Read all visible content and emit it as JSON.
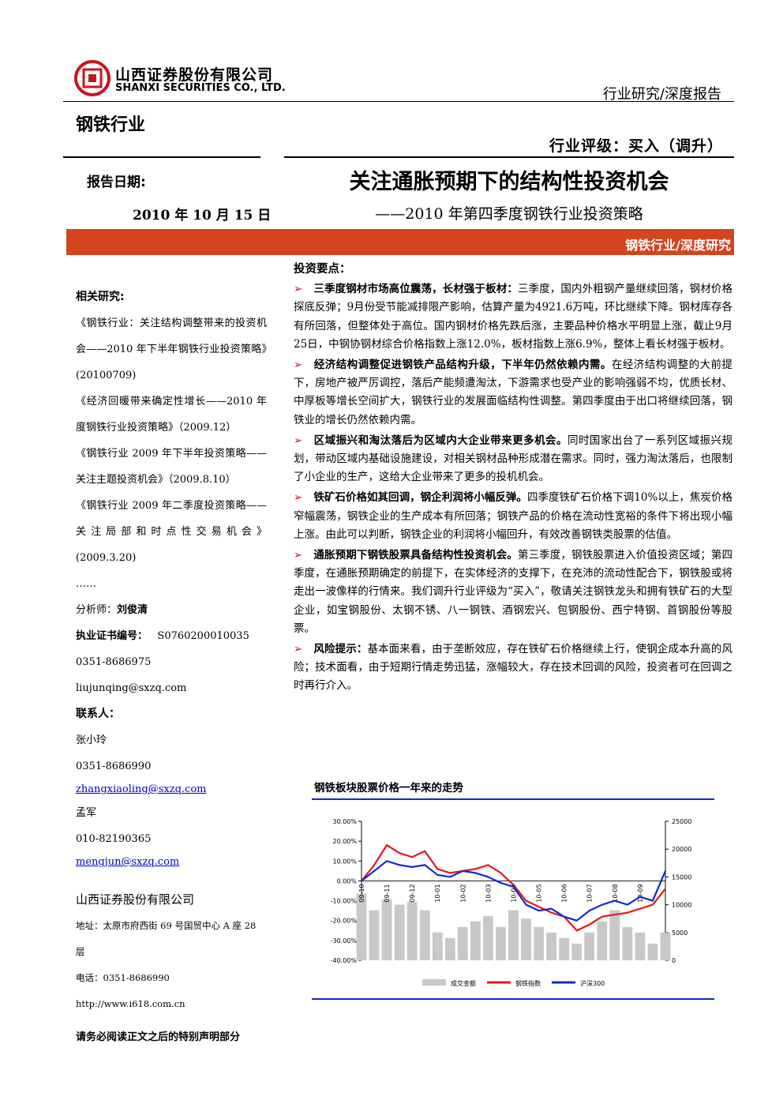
{
  "header": {
    "company_cn": "山西证券股份有限公司",
    "company_en": "SHANXI SECURITIES CO., LTD.",
    "report_type": "行业研究/深度报告"
  },
  "industry": "钢铁行业",
  "rating": "行业评级：买入（调升）",
  "report_date_label": "报告日期:",
  "report_date": "2010 年 10 月 15 日",
  "title": "关注通胀预期下的结构性投资机会",
  "subtitle": "——2010 年第四季度钢铁行业投资策略",
  "banner": "钢铁行业/深度研究",
  "sidebar": {
    "related_title": "相关研究:",
    "related": [
      "《钢铁行业：关注结构调整带来的投资机会——2010 年下半年钢铁行业投资策略》(20100709)",
      "《经济回暖带来确定性增长——2010 年度钢铁行业投资策略》（2009.12）",
      "《钢铁行业 2009 年下半年投资策略——关注主题投资机会》（2009.8.10）",
      "《钢铁行业 2009 年二季度投资策略——关注局部和时点性交易机会》(2009.3.20)",
      "……"
    ],
    "analyst_label": "分析师：",
    "analyst": "刘俊清",
    "cert_label": "执业证书编号：",
    "cert": "S0760200010035",
    "analyst_phone": "0351-8686975",
    "analyst_email": "liujunqing@sxzq.com",
    "contacts_title": "联系人：",
    "contacts": [
      {
        "name": "张小玲",
        "phone": "0351-8686990",
        "email": "zhangxiaoling@sxzq.com"
      },
      {
        "name": "孟军",
        "phone": "010-82190365",
        "email": "mengjun@sxzq.com"
      }
    ],
    "company": "山西证券股份有限公司",
    "address": "地址：太原市府西街 69 号国贸中心 A 座 28 层",
    "phone": "电话：0351-8686990",
    "url": "http://www.i618.com.cn"
  },
  "main": {
    "heading": "投资要点：",
    "bullets": [
      {
        "lead": "三季度钢材市场高位震荡，长材强于板材：",
        "text": "三季度，国内外粗钢产量继续回落，钢材价格探底反弹；9月份受节能减排限产影响，估算产量为4921.6万吨，环比继续下降。钢材库存各有所回落，但整体处于高位。国内钢材价格先跌后涨，主要品种价格水平明显上涨，截止9月25日，中钢协钢材综合价格指数上涨12.0%，板材指数上涨6.9%，整体上看长材强于板材。"
      },
      {
        "lead": "经济结构调整促进钢铁产品结构升级，下半年仍然依赖内需。",
        "text": "在经济结构调整的大前提下，房地产被严厉调控，落后产能频遭淘汰，下游需求也受产业的影响强弱不均，优质长材、中厚板等增长空间扩大，钢铁行业的发展面临结构性调整。第四季度由于出口将继续回落，钢铁业的增长仍然依赖内需。"
      },
      {
        "lead": "区域振兴和淘汰落后为区域内大企业带来更多机会。",
        "text": "同时国家出台了一系列区域振兴规划，带动区域内基础设施建设，对相关钢材品种形成潜在需求。同时，强力淘汰落后，也限制了小企业的生产，这给大企业带来了更多的投机机会。"
      },
      {
        "lead": "铁矿石价格如其回调，钢企利润将小幅反弹。",
        "text": "四季度铁矿石价格下调10%以上，焦炭价格窄幅震荡，钢铁企业的生产成本有所回落；钢铁产品的价格在流动性宽裕的条件下将出现小幅上涨。由此可以判断，钢铁企业的利润将小幅回升，有效改善钢铁类股票的估值。"
      },
      {
        "lead": "通胀预期下钢铁股票具备结构性投资机会。",
        "text": "第三季度，钢铁股票进入价值投资区域；第四季度，在通胀预期确定的前提下，在实体经济的支撑下，在充沛的流动性配合下，钢铁股或将走出一波像样的行情来。我们调升行业评级为“买入”，敬请关注钢铁龙头和拥有铁矿石的大型企业，如宝钢股份、太钢不锈、八一钢铁、酒钢宏兴、包钢股份、西宁特钢、首钢股份等股票。"
      },
      {
        "lead": "风险提示：",
        "text": "基本面来看，由于垄断效应，存在铁矿石价格继续上行，使钢企成本升高的风险；技术面看，由于短期行情走势迅猛，涨幅较大，存在技术回调的风险，投资者可在回调之时再行介入。"
      }
    ]
  },
  "chart_data": {
    "type": "line",
    "title": "钢铁板块股票价格一年来的走势",
    "categories": [
      "09-10",
      null,
      "09-11",
      null,
      "09-12",
      null,
      "10-01",
      null,
      "10-02",
      null,
      "10-03",
      null,
      "10-04",
      null,
      "10-05",
      null,
      "10-06",
      null,
      "10-07",
      null,
      "10-08",
      null,
      "10-09",
      null,
      null
    ],
    "series": [
      {
        "name": "成交金额",
        "color": "#c8c8c8",
        "axis": "y2",
        "kind": "bar",
        "values": [
          12000,
          9000,
          11000,
          10000,
          10500,
          9000,
          5000,
          4000,
          6000,
          7000,
          8000,
          6000,
          9000,
          7500,
          6000,
          5000,
          4000,
          3000,
          5000,
          7000,
          9000,
          6000,
          5000,
          3000,
          5000
        ]
      },
      {
        "name": "钢铁指数",
        "color": "#e8141e",
        "kind": "line",
        "values": [
          0,
          8,
          18,
          14,
          12,
          15,
          6,
          4,
          5,
          6,
          8,
          4,
          -2,
          -10,
          -13,
          -16,
          -18,
          -25,
          -22,
          -18,
          -17,
          -16,
          -14,
          -12,
          -4
        ]
      },
      {
        "name": "沪深300",
        "color": "#1428d2",
        "kind": "line",
        "values": [
          0,
          5,
          10,
          8,
          7,
          8,
          3,
          2,
          5,
          4,
          2,
          -1,
          -3,
          -12,
          -15,
          -14,
          -18,
          -20,
          -15,
          -12,
          -10,
          -12,
          -8,
          -10,
          5
        ]
      }
    ],
    "ylim": [
      -40,
      30
    ],
    "yticks": [
      {
        "value": 30,
        "label": "30.00%"
      },
      {
        "value": 20,
        "label": "20.00%"
      },
      {
        "value": 10,
        "label": "10.00%"
      },
      {
        "value": 0,
        "label": "0.00%"
      },
      {
        "value": -10,
        "label": "-10.00%"
      },
      {
        "value": -20,
        "label": "-20.00%"
      },
      {
        "value": -30,
        "label": "-30.00%"
      },
      {
        "value": -40,
        "label": "-40.00%"
      }
    ],
    "y2lim": [
      0,
      25000
    ],
    "y2ticks": [
      0,
      5000,
      10000,
      15000,
      20000,
      25000
    ]
  },
  "footer": "请务必阅读正文之后的特别声明部分"
}
